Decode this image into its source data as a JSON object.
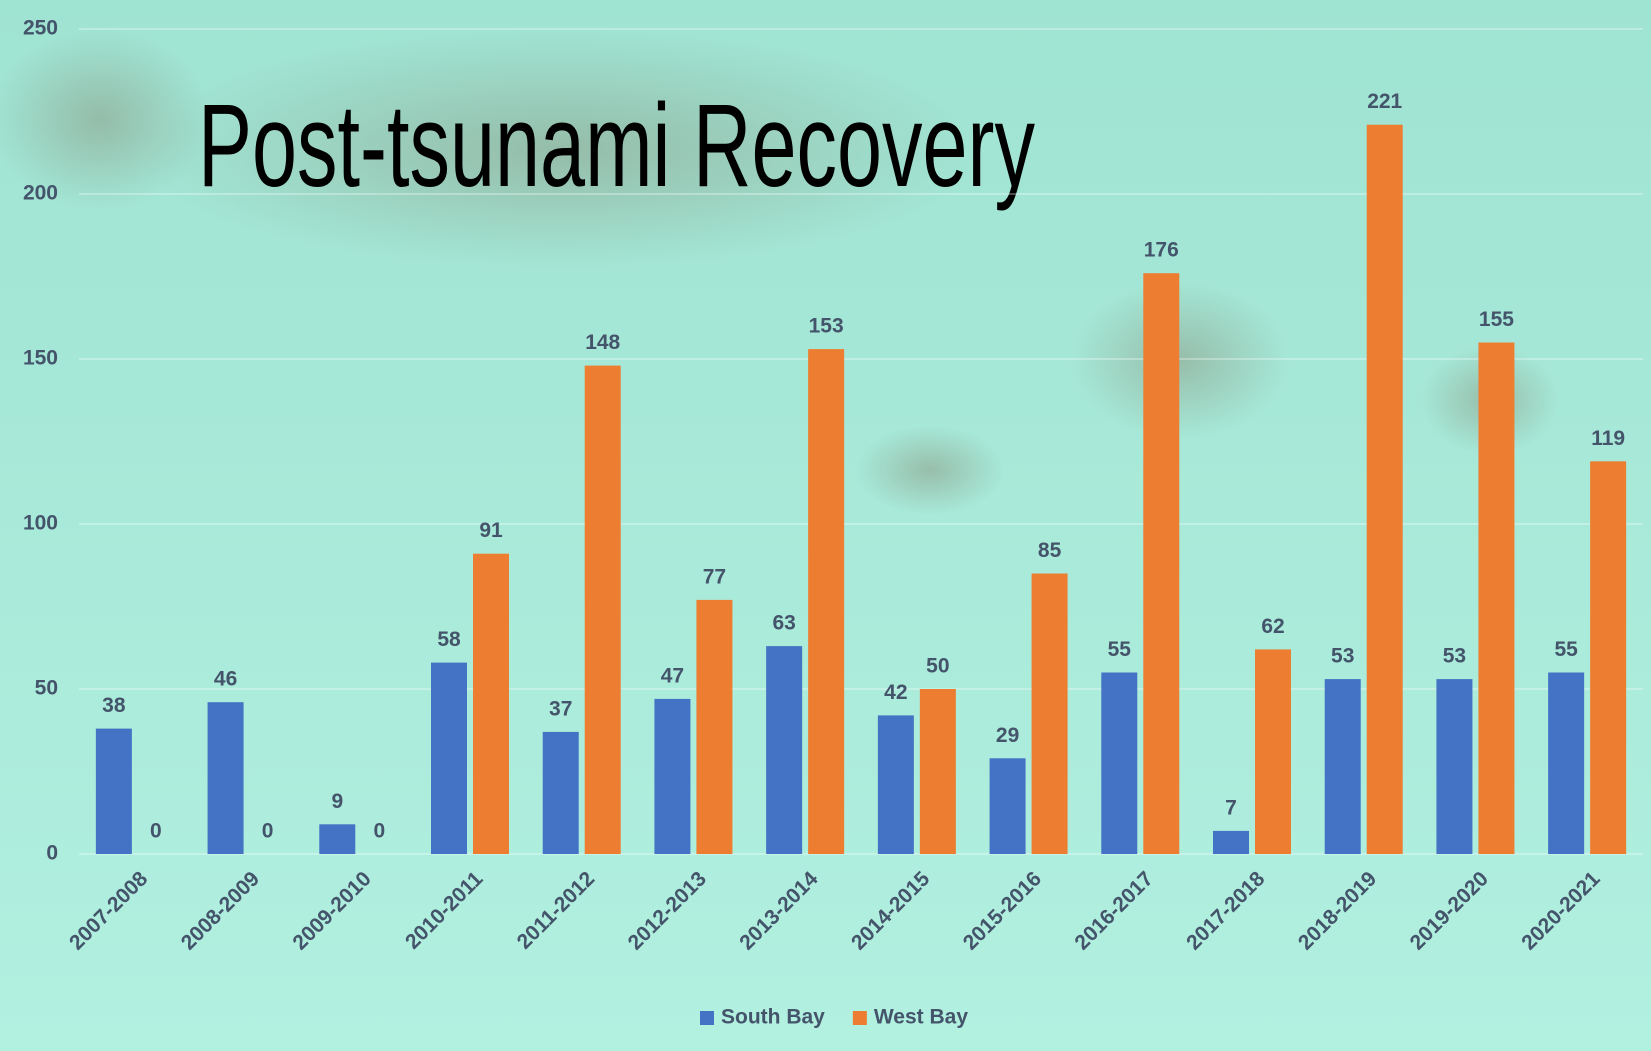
{
  "chart_data": {
    "type": "bar",
    "title": "Post-tsunami Recovery",
    "categories": [
      "2007-2008",
      "2008-2009",
      "2009-2010",
      "2010-2011",
      "2011-2012",
      "2012-2013",
      "2013-2014",
      "2014-2015",
      "2015-2016",
      "2016-2017",
      "2017-2018",
      "2018-2019",
      "2019-2020",
      "2020-2021"
    ],
    "series": [
      {
        "name": "South Bay",
        "color": "#4472c4",
        "values": [
          38,
          46,
          9,
          58,
          37,
          47,
          63,
          42,
          29,
          55,
          7,
          53,
          53,
          55
        ]
      },
      {
        "name": "West Bay",
        "color": "#ed7d31",
        "values": [
          0,
          0,
          0,
          91,
          148,
          77,
          153,
          50,
          85,
          176,
          62,
          221,
          155,
          119
        ]
      }
    ],
    "ylim": [
      0,
      250
    ],
    "yticks": [
      0,
      50,
      100,
      150,
      200,
      250
    ],
    "grid": true,
    "legend": "bottom"
  }
}
